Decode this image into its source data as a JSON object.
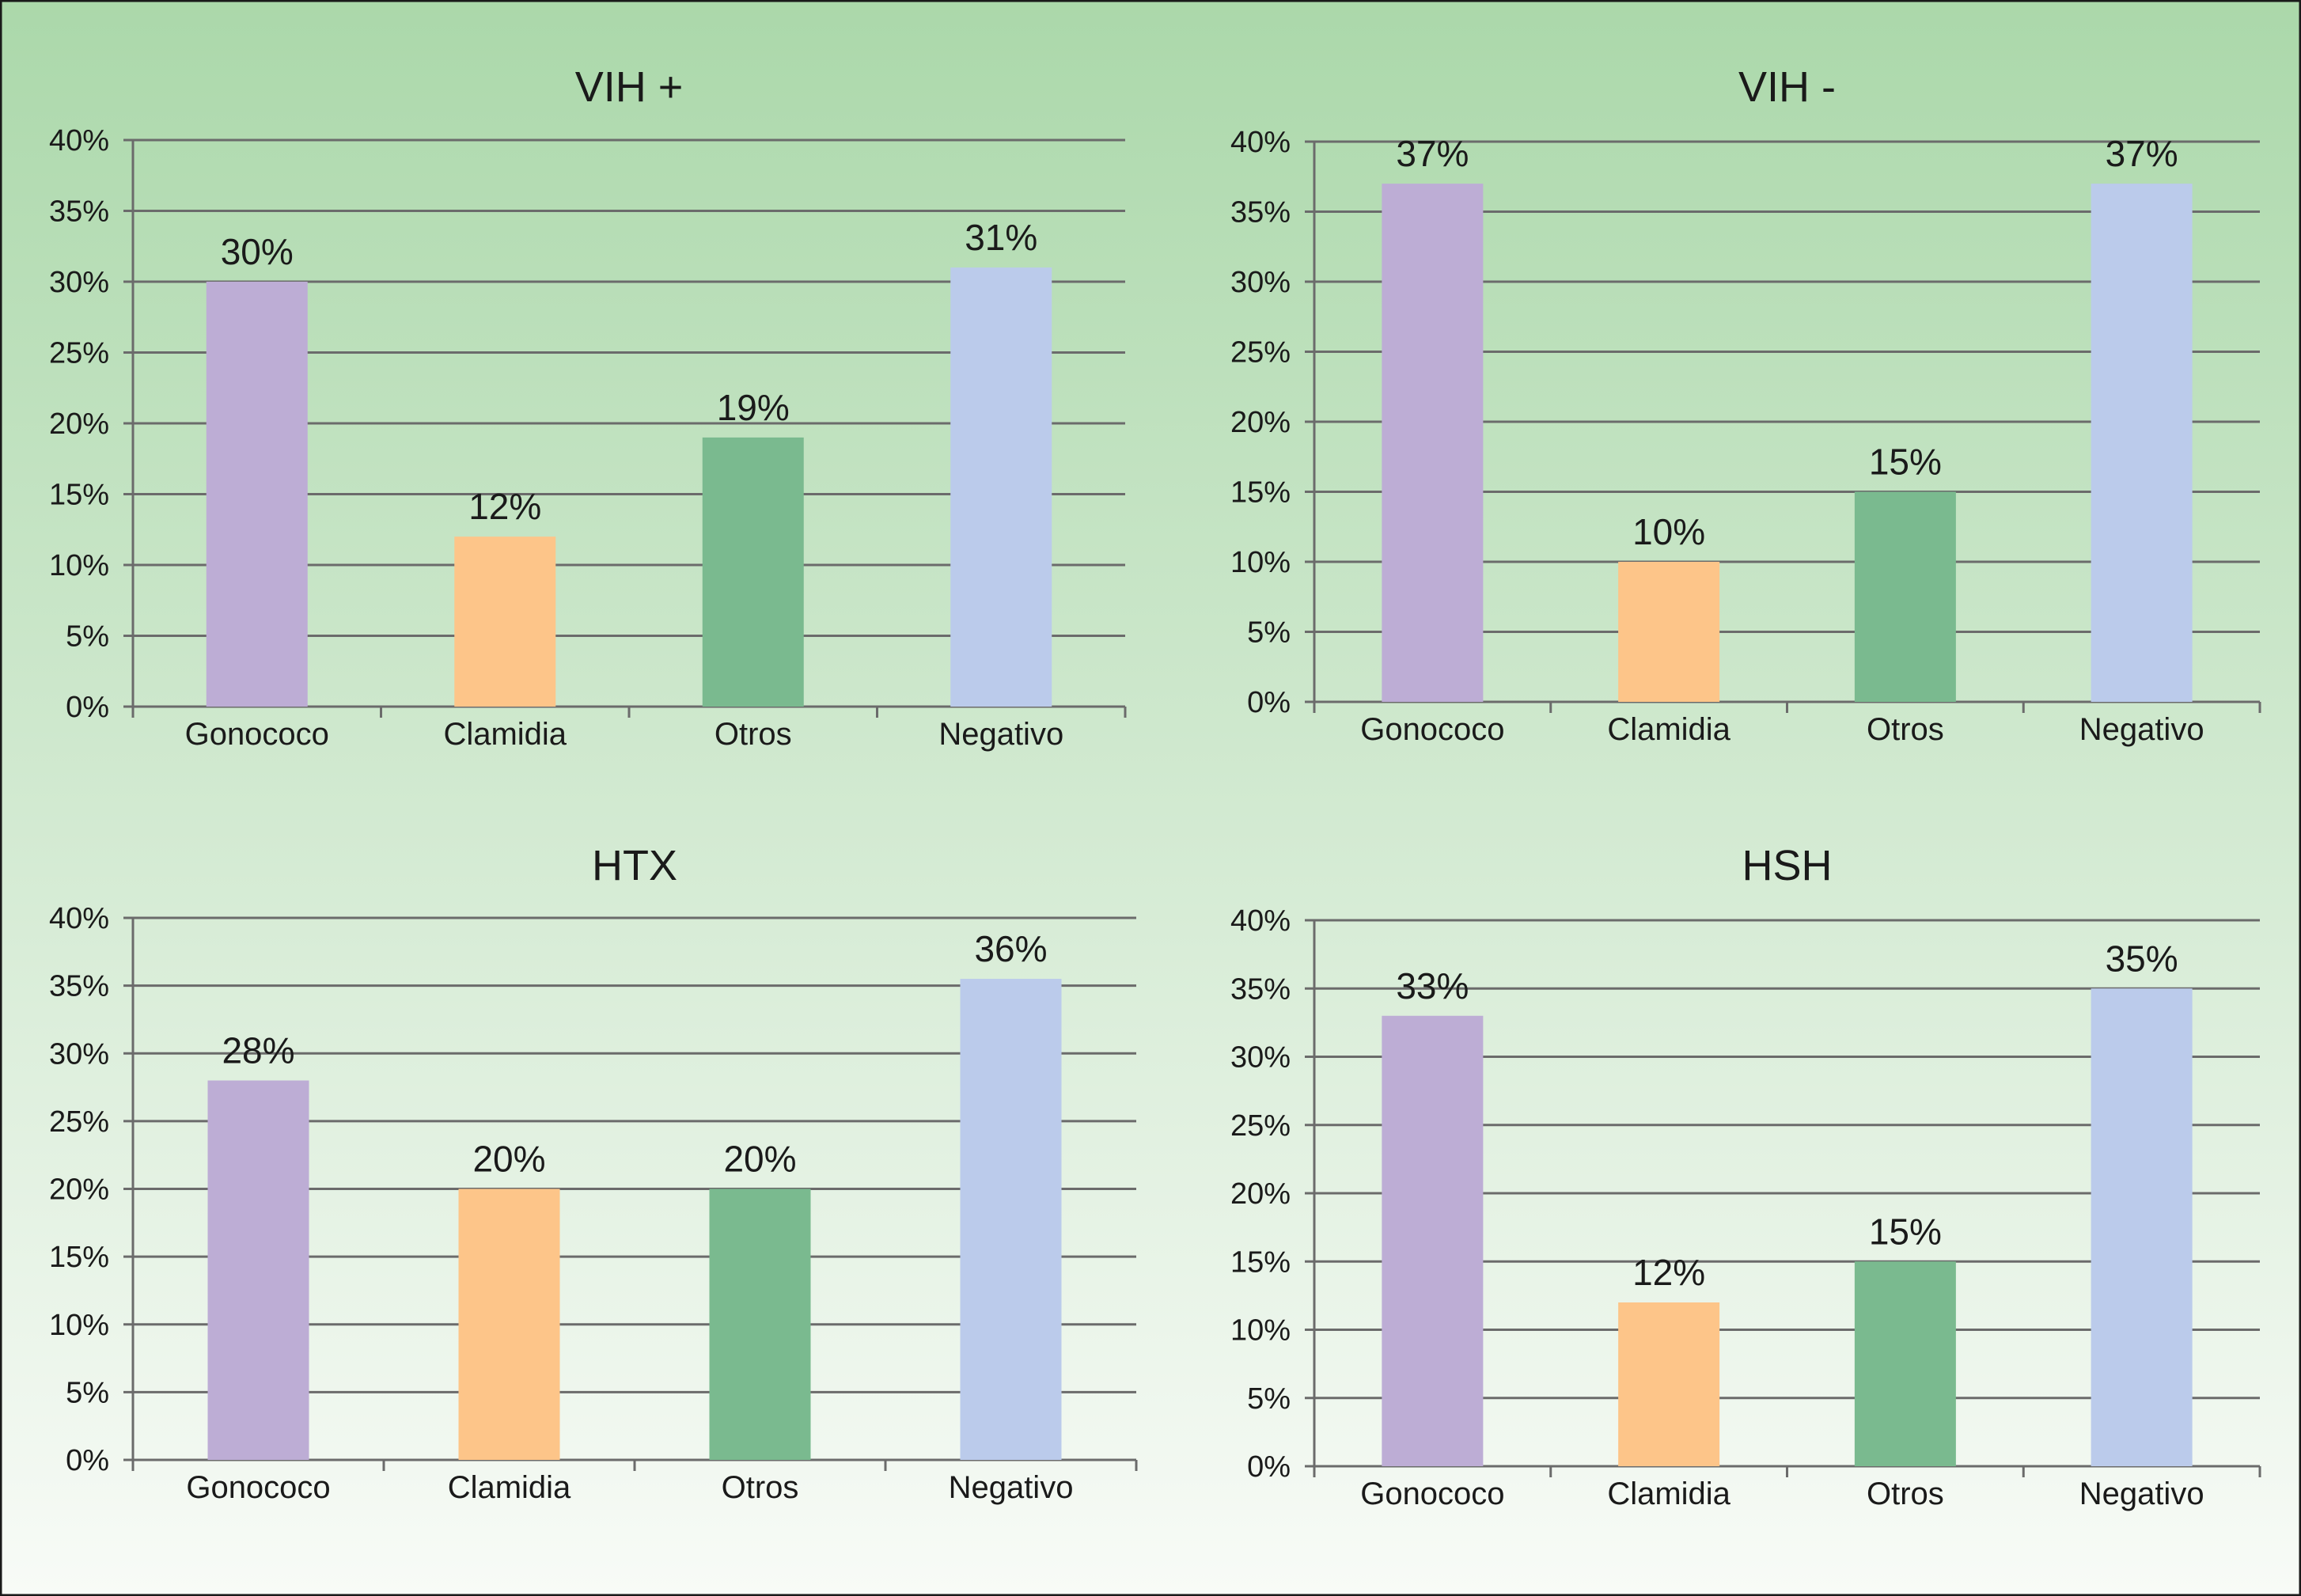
{
  "background": {
    "top_color": "#abd8aa",
    "bottom_color": "#f8fbf7",
    "border_color": "#1a1a1a"
  },
  "colors": {
    "gridline": "#6b6b6b",
    "axis": "#6b6b6b"
  },
  "chart_data": [
    {
      "type": "bar",
      "title": "VIH +",
      "categories": [
        "Gonococo",
        "Clamidia",
        "Otros",
        "Negativo"
      ],
      "values": [
        30,
        12,
        19,
        31
      ],
      "data_labels": [
        "30%",
        "12%",
        "19%",
        "31%"
      ],
      "bar_colors": [
        "#bdadd5",
        "#fdc589",
        "#7aba8f",
        "#bbcbeb"
      ],
      "ylim": [
        0,
        40
      ],
      "yticks": [
        0,
        5,
        10,
        15,
        20,
        25,
        30,
        35,
        40
      ],
      "ytick_labels": [
        "0%",
        "5%",
        "10%",
        "15%",
        "20%",
        "25%",
        "30%",
        "35%",
        "40%"
      ],
      "grid": true,
      "xlabel": "",
      "ylabel": ""
    },
    {
      "type": "bar",
      "title": "VIH -",
      "categories": [
        "Gonococo",
        "Clamidia",
        "Otros",
        "Negativo"
      ],
      "values": [
        37,
        10,
        15,
        37
      ],
      "data_labels": [
        "37%",
        "10%",
        "15%",
        "37%"
      ],
      "bar_colors": [
        "#bdadd5",
        "#fdc589",
        "#7aba8f",
        "#bbcbeb"
      ],
      "ylim": [
        0,
        40
      ],
      "yticks": [
        0,
        5,
        10,
        15,
        20,
        25,
        30,
        35,
        40
      ],
      "ytick_labels": [
        "0%",
        "5%",
        "10%",
        "15%",
        "20%",
        "25%",
        "30%",
        "35%",
        "40%"
      ],
      "grid": true,
      "xlabel": "",
      "ylabel": ""
    },
    {
      "type": "bar",
      "title": "HTX",
      "categories": [
        "Gonococo",
        "Clamidia",
        "Otros",
        "Negativo"
      ],
      "values": [
        28,
        20,
        20,
        35.5
      ],
      "data_labels": [
        "28%",
        "20%",
        "20%",
        "36%"
      ],
      "bar_colors": [
        "#bdadd5",
        "#fdc589",
        "#7aba8f",
        "#bbcbeb"
      ],
      "ylim": [
        0,
        40
      ],
      "yticks": [
        0,
        5,
        10,
        15,
        20,
        25,
        30,
        35,
        40
      ],
      "ytick_labels": [
        "0%",
        "5%",
        "10%",
        "15%",
        "20%",
        "25%",
        "30%",
        "35%",
        "40%"
      ],
      "grid": true,
      "xlabel": "",
      "ylabel": ""
    },
    {
      "type": "bar",
      "title": "HSH",
      "categories": [
        "Gonococo",
        "Clamidia",
        "Otros",
        "Negativo"
      ],
      "values": [
        33,
        12,
        15,
        35
      ],
      "data_labels": [
        "33%",
        "12%",
        "15%",
        "35%"
      ],
      "bar_colors": [
        "#bdadd5",
        "#fdc589",
        "#7aba8f",
        "#bbcbeb"
      ],
      "ylim": [
        0,
        40
      ],
      "yticks": [
        0,
        5,
        10,
        15,
        20,
        25,
        30,
        35,
        40
      ],
      "ytick_labels": [
        "0%",
        "5%",
        "10%",
        "15%",
        "20%",
        "25%",
        "30%",
        "35%",
        "40%"
      ],
      "grid": true,
      "xlabel": "",
      "ylabel": ""
    }
  ]
}
